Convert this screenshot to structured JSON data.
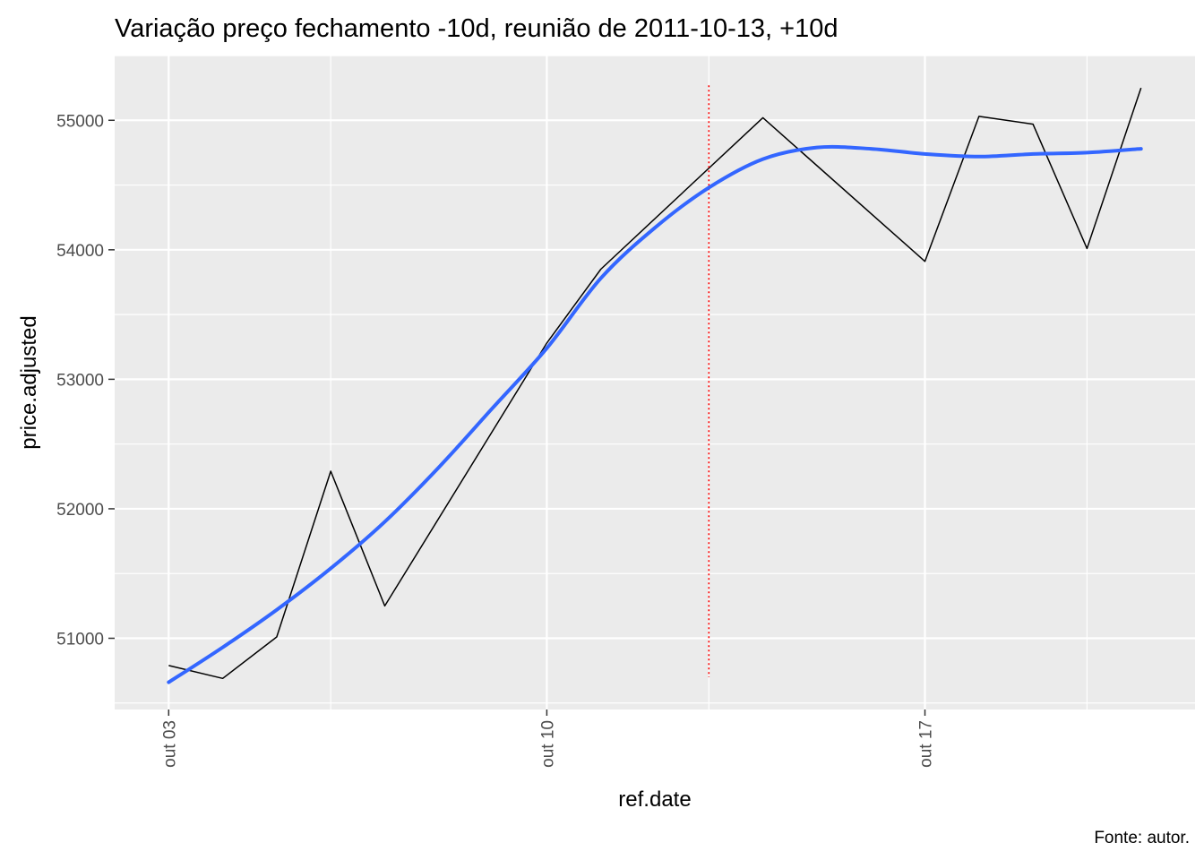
{
  "chart_data": {
    "type": "line",
    "title": "Variação preço fechamento -10d, reunião de 2011-10-13, +10d",
    "xlabel": "ref.date",
    "ylabel": "price.adjusted",
    "caption": "Fonte: autor.",
    "x_ticks": [
      {
        "label": "out 03",
        "date": "2011-10-03"
      },
      {
        "label": "out 10",
        "date": "2011-10-10"
      },
      {
        "label": "out 17",
        "date": "2011-10-17"
      }
    ],
    "y_ticks": [
      51000,
      52000,
      53000,
      54000,
      55000
    ],
    "xlim": [
      "2011-10-02",
      "2011-10-22"
    ],
    "ylim": [
      50450,
      55500
    ],
    "series": [
      {
        "color": "#000000",
        "points": [
          {
            "date": "2011-10-03",
            "value": 50790
          },
          {
            "date": "2011-10-04",
            "value": 50690
          },
          {
            "date": "2011-10-05",
            "value": 51010
          },
          {
            "date": "2011-10-06",
            "value": 52290
          },
          {
            "date": "2011-10-07",
            "value": 51250
          },
          {
            "date": "2011-10-10",
            "value": 53280
          },
          {
            "date": "2011-10-11",
            "value": 53850
          },
          {
            "date": "2011-10-14",
            "value": 55020
          },
          {
            "date": "2011-10-17",
            "value": 53910
          },
          {
            "date": "2011-10-18",
            "value": 55030
          },
          {
            "date": "2011-10-19",
            "value": 54970
          },
          {
            "date": "2011-10-20",
            "value": 54010
          },
          {
            "date": "2011-10-21",
            "value": 55250
          }
        ]
      }
    ],
    "smooth": {
      "color": "#3366FF",
      "points": [
        {
          "date": "2011-10-03",
          "value": 50660
        },
        {
          "date": "2011-10-04",
          "value": 50930
        },
        {
          "date": "2011-10-05",
          "value": 51220
        },
        {
          "date": "2011-10-06",
          "value": 51540
        },
        {
          "date": "2011-10-07",
          "value": 51900
        },
        {
          "date": "2011-10-08",
          "value": 52320
        },
        {
          "date": "2011-10-09",
          "value": 52780
        },
        {
          "date": "2011-10-10",
          "value": 53240
        },
        {
          "date": "2011-10-11",
          "value": 53780
        },
        {
          "date": "2011-10-12",
          "value": 54170
        },
        {
          "date": "2011-10-13",
          "value": 54480
        },
        {
          "date": "2011-10-14",
          "value": 54700
        },
        {
          "date": "2011-10-15",
          "value": 54790
        },
        {
          "date": "2011-10-16",
          "value": 54780
        },
        {
          "date": "2011-10-17",
          "value": 54740
        },
        {
          "date": "2011-10-18",
          "value": 54720
        },
        {
          "date": "2011-10-19",
          "value": 54740
        },
        {
          "date": "2011-10-20",
          "value": 54750
        },
        {
          "date": "2011-10-21",
          "value": 54780
        }
      ]
    },
    "reference_line": {
      "date": "2011-10-13",
      "y_range": [
        50700,
        55270
      ],
      "color": "#FF0000",
      "style": "dotted"
    },
    "panel_background": "#EBEBEB",
    "grid_color": "#FFFFFF",
    "grid": true,
    "legend": "none"
  }
}
